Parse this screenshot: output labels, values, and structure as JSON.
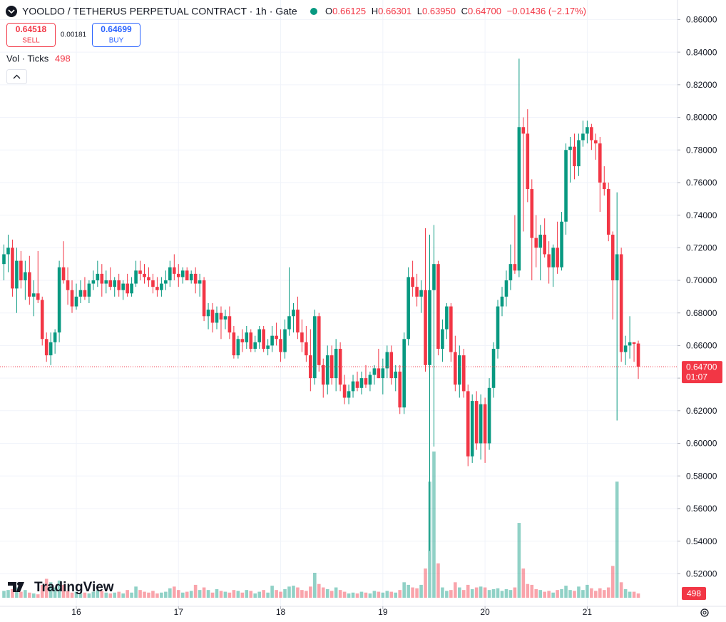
{
  "header": {
    "symbol_line": "YOOLDO / TETHERUS PERPETUAL CONTRACT · 1h · Gate",
    "open_label": "O",
    "open": "0.66125",
    "high_label": "H",
    "high": "0.66301",
    "low_label": "L",
    "low": "0.63950",
    "close_label": "C",
    "close": "0.64700",
    "change": "−0.01436 (−2.17%)"
  },
  "trade": {
    "sell_price": "0.64518",
    "sell_label": "SELL",
    "spread": "0.00181",
    "buy_price": "0.64699",
    "buy_label": "BUY"
  },
  "volume_legend": {
    "label": "Vol · Ticks",
    "value": "498"
  },
  "branding": "TradingView",
  "chart_data": {
    "type": "candlestick",
    "up_color": "#089981",
    "down_color": "#f23645",
    "ylim": [
      0.5,
      0.872
    ],
    "yticks": [
      {
        "value": 0.52,
        "label": "0.52000"
      },
      {
        "value": 0.54,
        "label": "0.54000"
      },
      {
        "value": 0.56,
        "label": "0.56000"
      },
      {
        "value": 0.58,
        "label": "0.58000"
      },
      {
        "value": 0.6,
        "label": "0.60000"
      },
      {
        "value": 0.62,
        "label": "0.62000"
      },
      {
        "value": 0.64,
        "label": "0.64000"
      },
      {
        "value": 0.66,
        "label": "0.66000"
      },
      {
        "value": 0.68,
        "label": "0.68000"
      },
      {
        "value": 0.7,
        "label": "0.70000"
      },
      {
        "value": 0.72,
        "label": "0.72000"
      },
      {
        "value": 0.74,
        "label": "0.74000"
      },
      {
        "value": 0.76,
        "label": "0.76000"
      },
      {
        "value": 0.78,
        "label": "0.78000"
      },
      {
        "value": 0.8,
        "label": "0.80000"
      },
      {
        "value": 0.82,
        "label": "0.82000"
      },
      {
        "value": 0.84,
        "label": "0.84000"
      },
      {
        "value": 0.86,
        "label": "0.86000"
      }
    ],
    "xticks": [
      {
        "value": 17,
        "label": "16"
      },
      {
        "value": 41,
        "label": "17"
      },
      {
        "value": 65,
        "label": "18"
      },
      {
        "value": 89,
        "label": "19"
      },
      {
        "value": 113,
        "label": "20"
      },
      {
        "value": 137,
        "label": "21"
      }
    ],
    "last_price": {
      "value": 0.647,
      "label": "0.64700"
    },
    "countdown": "01:07",
    "last_volume": 498,
    "candles": [
      [
        0.71,
        0.722,
        0.7,
        0.716,
        800
      ],
      [
        0.716,
        0.728,
        0.705,
        0.72,
        900
      ],
      [
        0.72,
        0.725,
        0.69,
        0.695,
        1000
      ],
      [
        0.695,
        0.72,
        0.68,
        0.712,
        1200
      ],
      [
        0.712,
        0.718,
        0.695,
        0.7,
        700
      ],
      [
        0.7,
        0.712,
        0.688,
        0.705,
        900
      ],
      [
        0.705,
        0.715,
        0.685,
        0.69,
        600
      ],
      [
        0.69,
        0.7,
        0.678,
        0.692,
        500
      ],
      [
        0.692,
        0.718,
        0.686,
        0.688,
        400
      ],
      [
        0.688,
        0.69,
        0.66,
        0.664,
        1500
      ],
      [
        0.664,
        0.668,
        0.65,
        0.654,
        2200
      ],
      [
        0.654,
        0.668,
        0.648,
        0.662,
        1800
      ],
      [
        0.662,
        0.67,
        0.655,
        0.668,
        1200
      ],
      [
        0.668,
        0.712,
        0.662,
        0.708,
        2000
      ],
      [
        0.708,
        0.724,
        0.698,
        0.7,
        1500
      ],
      [
        0.7,
        0.708,
        0.685,
        0.694,
        800
      ],
      [
        0.694,
        0.7,
        0.68,
        0.684,
        600
      ],
      [
        0.684,
        0.698,
        0.682,
        0.69,
        700
      ],
      [
        0.69,
        0.7,
        0.686,
        0.694,
        500
      ],
      [
        0.694,
        0.702,
        0.688,
        0.69,
        600
      ],
      [
        0.69,
        0.7,
        0.686,
        0.698,
        500
      ],
      [
        0.698,
        0.706,
        0.694,
        0.7,
        700
      ],
      [
        0.7,
        0.712,
        0.696,
        0.704,
        900
      ],
      [
        0.704,
        0.71,
        0.69,
        0.698,
        800
      ],
      [
        0.698,
        0.706,
        0.692,
        0.7,
        600
      ],
      [
        0.7,
        0.708,
        0.694,
        0.696,
        500
      ],
      [
        0.696,
        0.702,
        0.69,
        0.7,
        600
      ],
      [
        0.7,
        0.704,
        0.69,
        0.694,
        700
      ],
      [
        0.694,
        0.7,
        0.688,
        0.698,
        500
      ],
      [
        0.698,
        0.704,
        0.69,
        0.692,
        900
      ],
      [
        0.692,
        0.702,
        0.69,
        0.698,
        600
      ],
      [
        0.698,
        0.712,
        0.696,
        0.706,
        1300
      ],
      [
        0.706,
        0.712,
        0.7,
        0.704,
        900
      ],
      [
        0.704,
        0.71,
        0.698,
        0.702,
        700
      ],
      [
        0.702,
        0.708,
        0.696,
        0.7,
        600
      ],
      [
        0.7,
        0.704,
        0.692,
        0.696,
        800
      ],
      [
        0.696,
        0.702,
        0.69,
        0.694,
        500
      ],
      [
        0.694,
        0.702,
        0.69,
        0.698,
        600
      ],
      [
        0.698,
        0.706,
        0.694,
        0.7,
        700
      ],
      [
        0.7,
        0.712,
        0.696,
        0.708,
        1100
      ],
      [
        0.708,
        0.716,
        0.7,
        0.704,
        1300
      ],
      [
        0.704,
        0.71,
        0.696,
        0.702,
        900
      ],
      [
        0.702,
        0.708,
        0.698,
        0.706,
        600
      ],
      [
        0.706,
        0.708,
        0.7,
        0.7,
        700
      ],
      [
        0.7,
        0.706,
        0.698,
        0.704,
        800
      ],
      [
        0.704,
        0.708,
        0.692,
        0.698,
        1500
      ],
      [
        0.698,
        0.704,
        0.69,
        0.7,
        900
      ],
      [
        0.7,
        0.702,
        0.675,
        0.678,
        1200
      ],
      [
        0.678,
        0.686,
        0.67,
        0.682,
        900
      ],
      [
        0.682,
        0.686,
        0.668,
        0.674,
        600
      ],
      [
        0.674,
        0.684,
        0.67,
        0.68,
        1000
      ],
      [
        0.68,
        0.684,
        0.664,
        0.676,
        800
      ],
      [
        0.676,
        0.682,
        0.67,
        0.678,
        700
      ],
      [
        0.678,
        0.684,
        0.664,
        0.668,
        600
      ],
      [
        0.668,
        0.672,
        0.652,
        0.654,
        900
      ],
      [
        0.654,
        0.666,
        0.652,
        0.664,
        800
      ],
      [
        0.664,
        0.67,
        0.656,
        0.662,
        600
      ],
      [
        0.662,
        0.672,
        0.658,
        0.668,
        900
      ],
      [
        0.668,
        0.67,
        0.656,
        0.658,
        800
      ],
      [
        0.658,
        0.666,
        0.656,
        0.662,
        500
      ],
      [
        0.662,
        0.672,
        0.658,
        0.67,
        700
      ],
      [
        0.67,
        0.672,
        0.656,
        0.658,
        900
      ],
      [
        0.658,
        0.664,
        0.654,
        0.66,
        600
      ],
      [
        0.66,
        0.672,
        0.656,
        0.666,
        1400
      ],
      [
        0.666,
        0.674,
        0.66,
        0.664,
        900
      ],
      [
        0.664,
        0.67,
        0.65,
        0.656,
        700
      ],
      [
        0.656,
        0.676,
        0.652,
        0.67,
        1000
      ],
      [
        0.67,
        0.708,
        0.666,
        0.678,
        1300
      ],
      [
        0.678,
        0.686,
        0.668,
        0.682,
        1400
      ],
      [
        0.682,
        0.69,
        0.664,
        0.668,
        1200
      ],
      [
        0.668,
        0.676,
        0.656,
        0.662,
        900
      ],
      [
        0.662,
        0.672,
        0.65,
        0.654,
        800
      ],
      [
        0.654,
        0.67,
        0.632,
        0.64,
        1300
      ],
      [
        0.64,
        0.682,
        0.636,
        0.678,
        2900
      ],
      [
        0.678,
        0.68,
        0.644,
        0.648,
        1600
      ],
      [
        0.648,
        0.652,
        0.628,
        0.636,
        1200
      ],
      [
        0.636,
        0.66,
        0.63,
        0.654,
        1000
      ],
      [
        0.654,
        0.66,
        0.636,
        0.64,
        800
      ],
      [
        0.64,
        0.664,
        0.632,
        0.658,
        1200
      ],
      [
        0.658,
        0.662,
        0.632,
        0.636,
        900
      ],
      [
        0.636,
        0.642,
        0.624,
        0.628,
        700
      ],
      [
        0.628,
        0.636,
        0.624,
        0.632,
        500
      ],
      [
        0.632,
        0.642,
        0.628,
        0.638,
        600
      ],
      [
        0.638,
        0.644,
        0.632,
        0.634,
        500
      ],
      [
        0.634,
        0.644,
        0.63,
        0.64,
        700
      ],
      [
        0.64,
        0.648,
        0.634,
        0.636,
        600
      ],
      [
        0.636,
        0.644,
        0.632,
        0.642,
        500
      ],
      [
        0.642,
        0.648,
        0.636,
        0.646,
        800
      ],
      [
        0.646,
        0.658,
        0.64,
        0.64,
        700
      ],
      [
        0.64,
        0.652,
        0.63,
        0.646,
        600
      ],
      [
        0.646,
        0.66,
        0.64,
        0.656,
        800
      ],
      [
        0.656,
        0.66,
        0.636,
        0.64,
        700
      ],
      [
        0.64,
        0.648,
        0.632,
        0.644,
        600
      ],
      [
        0.644,
        0.648,
        0.618,
        0.622,
        900
      ],
      [
        0.622,
        0.668,
        0.618,
        0.664,
        1800
      ],
      [
        0.664,
        0.708,
        0.66,
        0.702,
        1500
      ],
      [
        0.702,
        0.712,
        0.69,
        0.696,
        1200
      ],
      [
        0.696,
        0.704,
        0.684,
        0.69,
        1100
      ],
      [
        0.69,
        0.7,
        0.68,
        0.694,
        1500
      ],
      [
        0.694,
        0.732,
        0.644,
        0.648,
        3400
      ],
      [
        0.648,
        0.728,
        0.534,
        0.694,
        13500
      ],
      [
        0.694,
        0.734,
        0.598,
        0.71,
        17000
      ],
      [
        0.71,
        0.712,
        0.654,
        0.658,
        4000
      ],
      [
        0.658,
        0.676,
        0.65,
        0.67,
        1200
      ],
      [
        0.67,
        0.686,
        0.664,
        0.684,
        800
      ],
      [
        0.684,
        0.686,
        0.65,
        0.656,
        900
      ],
      [
        0.656,
        0.666,
        0.632,
        0.636,
        1800
      ],
      [
        0.636,
        0.66,
        0.628,
        0.654,
        1200
      ],
      [
        0.654,
        0.658,
        0.628,
        0.632,
        900
      ],
      [
        0.632,
        0.636,
        0.586,
        0.592,
        1500
      ],
      [
        0.592,
        0.63,
        0.588,
        0.626,
        1000
      ],
      [
        0.626,
        0.632,
        0.596,
        0.6,
        1200
      ],
      [
        0.6,
        0.63,
        0.59,
        0.624,
        1300
      ],
      [
        0.624,
        0.628,
        0.588,
        0.6,
        1200
      ],
      [
        0.6,
        0.64,
        0.596,
        0.634,
        900
      ],
      [
        0.634,
        0.662,
        0.628,
        0.658,
        1000
      ],
      [
        0.658,
        0.688,
        0.652,
        0.684,
        1100
      ],
      [
        0.684,
        0.696,
        0.678,
        0.69,
        800
      ],
      [
        0.69,
        0.706,
        0.684,
        0.7,
        1000
      ],
      [
        0.7,
        0.722,
        0.694,
        0.71,
        900
      ],
      [
        0.71,
        0.74,
        0.704,
        0.706,
        1200
      ],
      [
        0.706,
        0.836,
        0.702,
        0.794,
        8700
      ],
      [
        0.794,
        0.8,
        0.73,
        0.79,
        3400
      ],
      [
        0.79,
        0.805,
        0.748,
        0.756,
        1600
      ],
      [
        0.756,
        0.762,
        0.7,
        0.726,
        1500
      ],
      [
        0.726,
        0.74,
        0.708,
        0.72,
        1000
      ],
      [
        0.72,
        0.734,
        0.7,
        0.728,
        900
      ],
      [
        0.728,
        0.738,
        0.714,
        0.716,
        700
      ],
      [
        0.716,
        0.724,
        0.698,
        0.708,
        800
      ],
      [
        0.708,
        0.722,
        0.696,
        0.72,
        600
      ],
      [
        0.72,
        0.736,
        0.704,
        0.708,
        900
      ],
      [
        0.708,
        0.742,
        0.706,
        0.736,
        1000
      ],
      [
        0.736,
        0.784,
        0.728,
        0.78,
        1400
      ],
      [
        0.78,
        0.788,
        0.76,
        0.782,
        900
      ],
      [
        0.782,
        0.79,
        0.762,
        0.77,
        800
      ],
      [
        0.77,
        0.79,
        0.764,
        0.786,
        1300
      ],
      [
        0.786,
        0.798,
        0.782,
        0.79,
        900
      ],
      [
        0.79,
        0.798,
        0.784,
        0.794,
        1500
      ],
      [
        0.794,
        0.796,
        0.78,
        0.786,
        1100
      ],
      [
        0.786,
        0.79,
        0.774,
        0.784,
        800
      ],
      [
        0.784,
        0.788,
        0.742,
        0.76,
        1100
      ],
      [
        0.76,
        0.77,
        0.752,
        0.756,
        900
      ],
      [
        0.756,
        0.76,
        0.724,
        0.728,
        1200
      ],
      [
        0.728,
        0.73,
        0.676,
        0.7,
        3700
      ],
      [
        0.7,
        0.754,
        0.614,
        0.716,
        13500
      ],
      [
        0.716,
        0.72,
        0.65,
        0.656,
        1800
      ],
      [
        0.656,
        0.666,
        0.648,
        0.66,
        1000
      ],
      [
        0.66,
        0.678,
        0.652,
        0.662,
        700
      ],
      [
        0.662,
        0.662,
        0.65,
        0.661,
        700
      ],
      [
        0.66125,
        0.66301,
        0.6395,
        0.647,
        498
      ]
    ]
  }
}
